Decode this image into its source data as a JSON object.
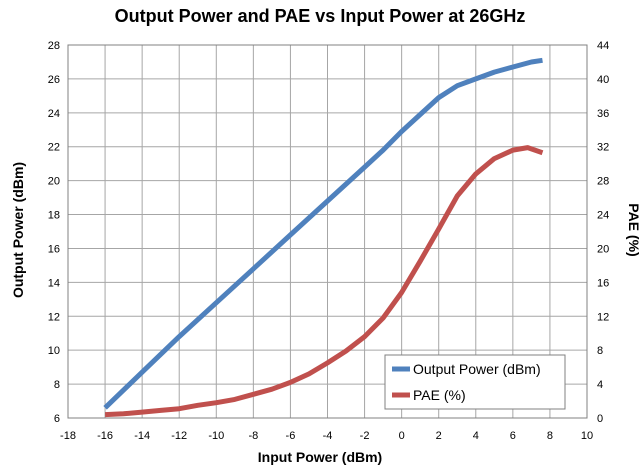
{
  "chart_data": {
    "type": "line",
    "title": "Output Power and PAE vs Input Power at 26GHz",
    "xlabel": "Input Power (dBm)",
    "ylabel": "Output Power (dBm)",
    "y2label": "PAE (%)",
    "xlim": [
      -18,
      10
    ],
    "ylim": [
      6,
      28
    ],
    "y2lim": [
      0,
      44
    ],
    "xticks": [
      -18,
      -16,
      -14,
      -12,
      -10,
      -8,
      -6,
      -4,
      -2,
      0,
      2,
      4,
      6,
      8,
      10
    ],
    "yticks": [
      6,
      8,
      10,
      12,
      14,
      16,
      18,
      20,
      22,
      24,
      26,
      28
    ],
    "y2ticks": [
      0,
      4,
      8,
      12,
      16,
      20,
      24,
      28,
      32,
      36,
      40,
      44
    ],
    "grid": true,
    "legend_position": "bottom-right",
    "series": [
      {
        "name": "Output Power (dBm)",
        "axis": "left",
        "color": "#4f81bd",
        "x": [
          -16,
          -14,
          -12,
          -10,
          -8,
          -6,
          -4,
          -2,
          -1,
          0,
          1,
          2,
          3,
          4,
          5,
          6,
          7,
          7.6
        ],
        "y": [
          6.6,
          8.7,
          10.8,
          12.8,
          14.8,
          16.8,
          18.8,
          20.8,
          21.8,
          22.9,
          23.9,
          24.9,
          25.6,
          26.0,
          26.4,
          26.7,
          27.0,
          27.1
        ]
      },
      {
        "name": "PAE (%)",
        "axis": "right",
        "color": "#c0504d",
        "x": [
          -16,
          -15,
          -14,
          -13,
          -12,
          -11,
          -10,
          -9,
          -8,
          -7,
          -6,
          -5,
          -4,
          -3,
          -2,
          -1,
          0,
          1,
          2,
          3,
          4,
          5,
          6,
          6.8,
          7.6
        ],
        "y": [
          0.4,
          0.5,
          0.7,
          0.9,
          1.1,
          1.5,
          1.8,
          2.2,
          2.8,
          3.4,
          4.2,
          5.2,
          6.5,
          7.9,
          9.6,
          11.8,
          14.8,
          18.5,
          22.3,
          26.2,
          28.8,
          30.6,
          31.6,
          31.9,
          31.3
        ]
      }
    ]
  }
}
